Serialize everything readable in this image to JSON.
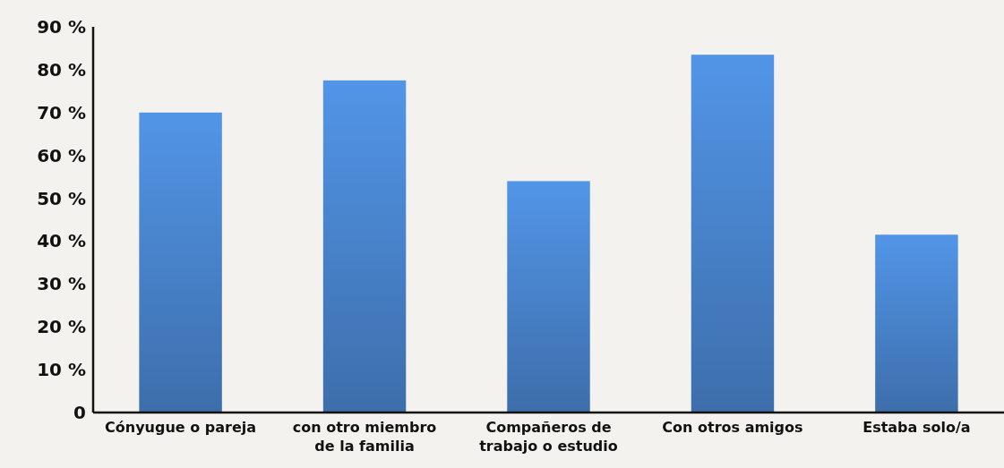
{
  "chart_data": {
    "type": "bar",
    "categories": [
      "Cónyugue o pareja",
      "con otro miembro de la familia",
      "Compañeros de trabajo o estudio",
      "Con otros amigos",
      "Estaba solo/a"
    ],
    "values": [
      70,
      77.5,
      54,
      83.5,
      41.5
    ],
    "color": "#4a86d0",
    "ylim": [
      0,
      90
    ],
    "yticks": [
      {
        "value": 0,
        "label": "0"
      },
      {
        "value": 10,
        "label": "10 %"
      },
      {
        "value": 20,
        "label": "20 %"
      },
      {
        "value": 30,
        "label": "30 %"
      },
      {
        "value": 40,
        "label": "40 %"
      },
      {
        "value": 50,
        "label": "50 %"
      },
      {
        "value": 60,
        "label": "60 %"
      },
      {
        "value": 70,
        "label": "70 %"
      },
      {
        "value": 80,
        "label": "80 %"
      },
      {
        "value": 90,
        "label": "90 %"
      }
    ],
    "grid": false
  }
}
